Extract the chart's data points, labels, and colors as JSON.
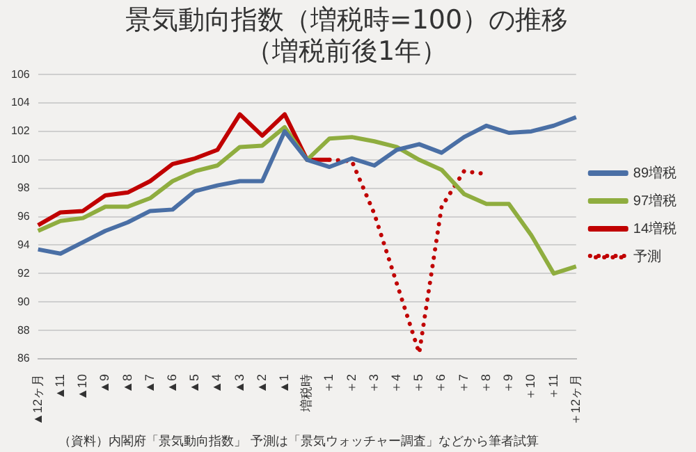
{
  "chart_data": {
    "type": "line",
    "title": "景気動向指数（増税時=100）の推移",
    "subtitle": "（増税前後1年）",
    "categories": [
      "▲12ヶ月",
      "▲11",
      "▲10",
      "▲9",
      "▲8",
      "▲7",
      "▲6",
      "▲5",
      "▲4",
      "▲3",
      "▲2",
      "▲1",
      "増税時",
      "＋1",
      "＋2",
      "＋3",
      "＋4",
      "＋5",
      "＋6",
      "＋7",
      "＋8",
      "＋9",
      "＋10",
      "＋11",
      "＋12ヶ月"
    ],
    "series": [
      {
        "name": "89増税",
        "color": "#4a6fa5",
        "line_style": "solid",
        "values": [
          93.7,
          93.4,
          94.2,
          95.0,
          95.6,
          96.4,
          96.5,
          97.8,
          98.2,
          98.5,
          98.5,
          102.0,
          100.0,
          99.5,
          100.1,
          99.6,
          100.7,
          101.1,
          100.5,
          101.6,
          102.4,
          101.9,
          102.0,
          102.4,
          103.0
        ]
      },
      {
        "name": "97増税",
        "color": "#8fad3f",
        "line_style": "solid",
        "values": [
          95.0,
          95.7,
          95.9,
          96.7,
          96.7,
          97.3,
          98.5,
          99.2,
          99.6,
          100.9,
          101.0,
          102.3,
          100.0,
          101.5,
          101.6,
          101.3,
          100.9,
          100.0,
          99.3,
          97.6,
          96.9,
          96.9,
          94.7,
          92.0,
          92.5
        ]
      },
      {
        "name": "14増税",
        "color": "#c00000",
        "line_style": "solid",
        "values": [
          95.4,
          96.3,
          96.4,
          97.5,
          97.7,
          98.5,
          99.7,
          100.1,
          100.7,
          103.2,
          101.7,
          103.2,
          100.0,
          100.0,
          null,
          null,
          null,
          null,
          null,
          null,
          null,
          null,
          null,
          null,
          null
        ]
      },
      {
        "name": "予測",
        "color": "#c00000",
        "line_style": "dotted",
        "values": [
          null,
          null,
          null,
          null,
          null,
          null,
          null,
          null,
          null,
          null,
          null,
          null,
          null,
          100.0,
          99.9,
          96.2,
          91.3,
          86.4,
          96.7,
          99.2,
          99.0,
          null,
          null,
          null,
          null
        ]
      }
    ],
    "ylim": [
      86,
      106
    ],
    "yticks": [
      86,
      88,
      90,
      92,
      94,
      96,
      98,
      100,
      102,
      104,
      106
    ],
    "grid": "y",
    "legend": "right",
    "marker": "none",
    "annotations": [
      "（資料）内閣府「景気動向指数」 予測は「景気ウォッチャー調査」などから筆者試算"
    ]
  }
}
